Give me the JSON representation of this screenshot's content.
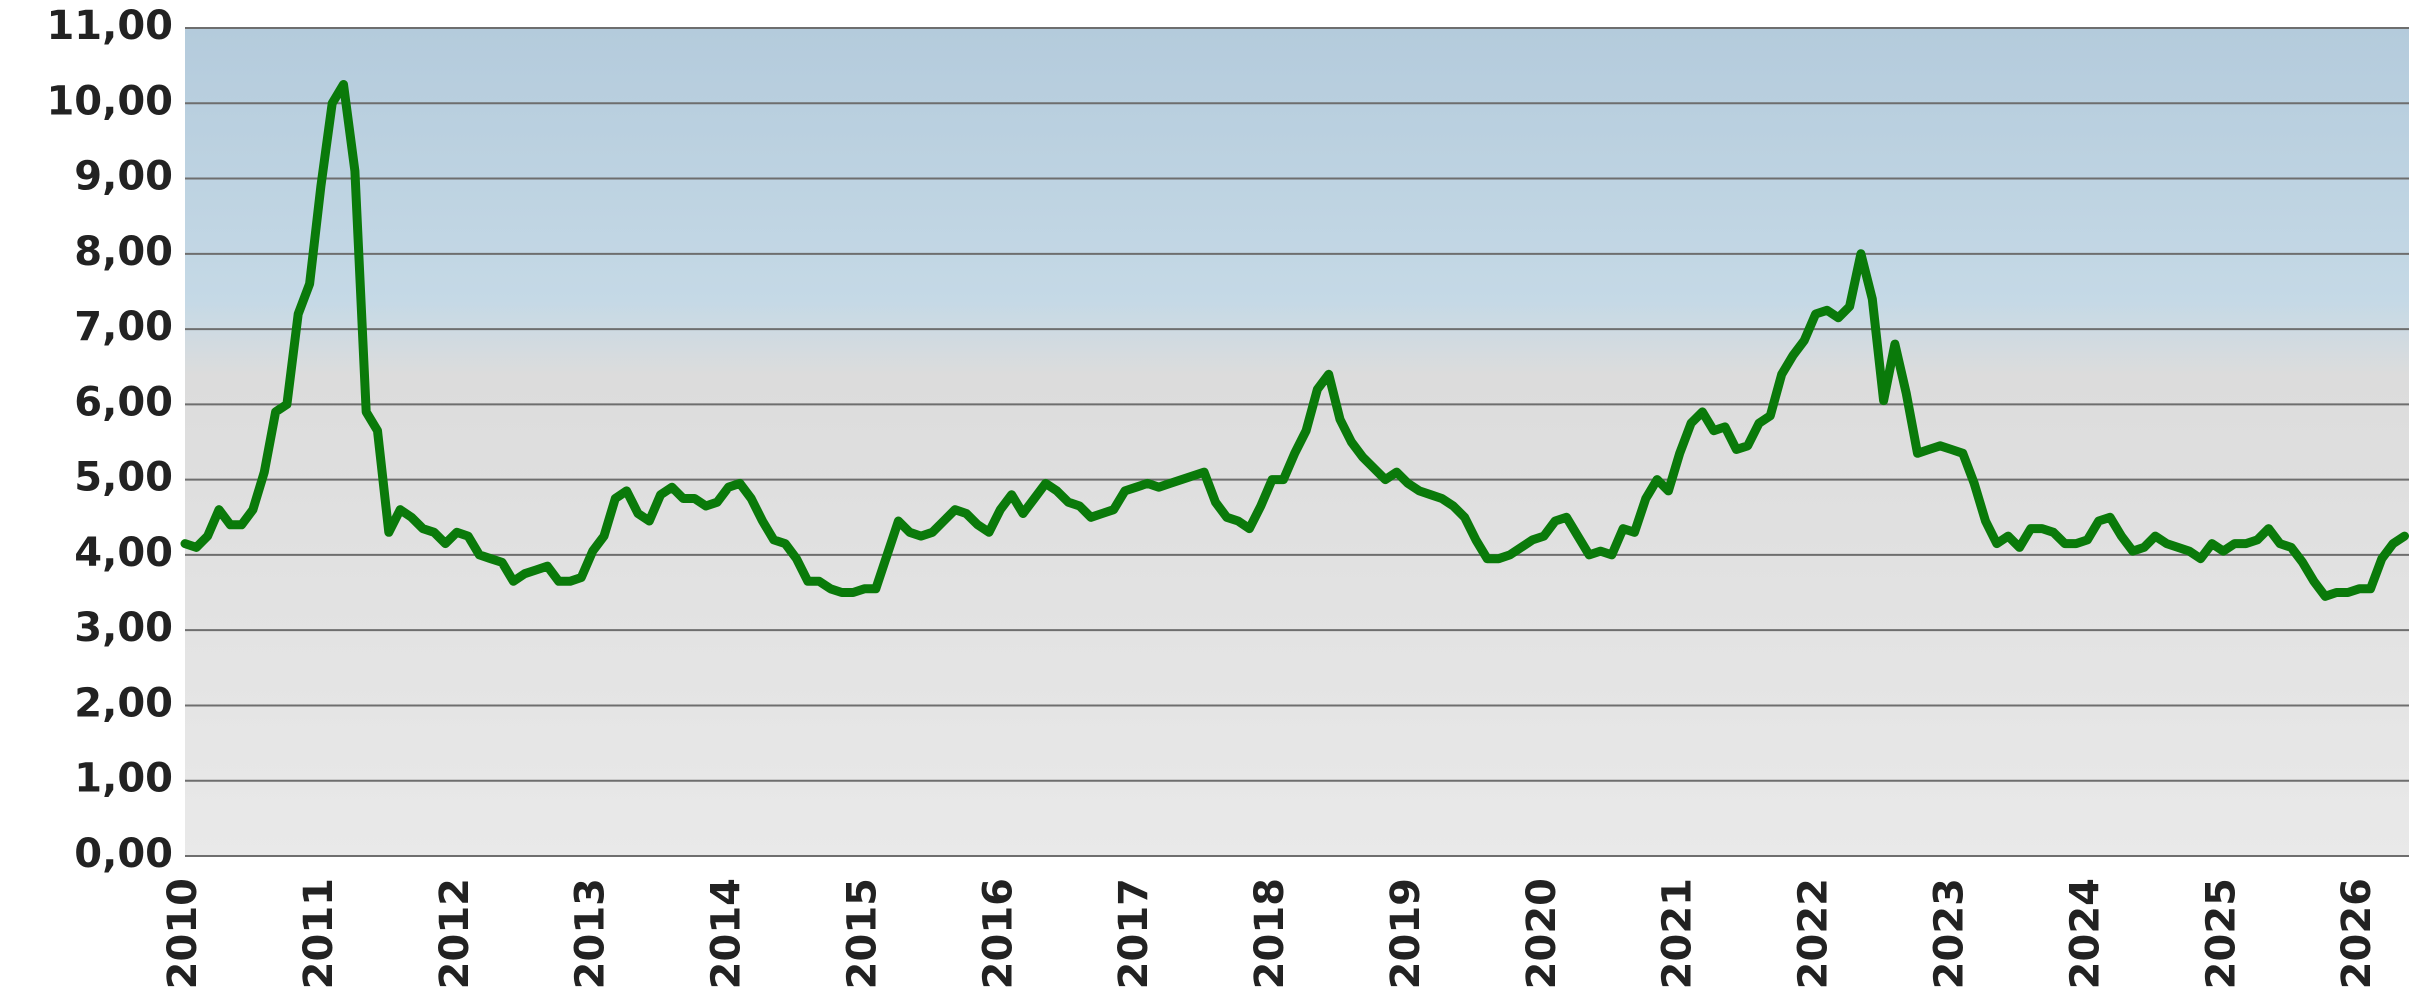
{
  "chart_data": {
    "type": "line",
    "categories": [
      "2010",
      null,
      null,
      null,
      null,
      null,
      null,
      null,
      null,
      null,
      null,
      null,
      "2011",
      null,
      null,
      null,
      null,
      null,
      null,
      null,
      null,
      null,
      null,
      null,
      "2012",
      null,
      null,
      null,
      null,
      null,
      null,
      null,
      null,
      null,
      null,
      null,
      "2013",
      null,
      null,
      null,
      null,
      null,
      null,
      null,
      null,
      null,
      null,
      null,
      "2014",
      null,
      null,
      null,
      null,
      null,
      null,
      null,
      null,
      null,
      null,
      null,
      "2015",
      null,
      null,
      null,
      null,
      null,
      null,
      null,
      null,
      null,
      null,
      null,
      "2016",
      null,
      null,
      null,
      null,
      null,
      null,
      null,
      null,
      null,
      null,
      null,
      "2017",
      null,
      null,
      null,
      null,
      null,
      null,
      null,
      null,
      null,
      null,
      null,
      "2018",
      null,
      null,
      null,
      null,
      null,
      null,
      null,
      null,
      null,
      null,
      null,
      "2019",
      null,
      null,
      null,
      null,
      null,
      null,
      null,
      null,
      null,
      null,
      null,
      "2020",
      null,
      null,
      null,
      null,
      null,
      null,
      null,
      null,
      null,
      null,
      null,
      "2021",
      null,
      null,
      null,
      null,
      null,
      null,
      null,
      null,
      null,
      null,
      null,
      "2022",
      null,
      null,
      null,
      null,
      null,
      null,
      null,
      null,
      null,
      null,
      null,
      "2023",
      null,
      null,
      null,
      null,
      null,
      null,
      null,
      null,
      null,
      null,
      null,
      "2024",
      null,
      null,
      null,
      null,
      null,
      null,
      null,
      null,
      null,
      null,
      null,
      "2025",
      null,
      null,
      null,
      null,
      null,
      null,
      null,
      null,
      null,
      null,
      null,
      "2026",
      null,
      null,
      null,
      null
    ],
    "values": [
      4.15,
      4.1,
      4.25,
      4.6,
      4.4,
      4.4,
      4.6,
      5.1,
      5.9,
      6.0,
      7.2,
      7.6,
      8.9,
      10.0,
      10.25,
      9.1,
      5.9,
      5.65,
      4.3,
      4.6,
      4.5,
      4.35,
      4.3,
      4.15,
      4.3,
      4.25,
      4.0,
      3.95,
      3.9,
      3.65,
      3.75,
      3.8,
      3.85,
      3.65,
      3.65,
      3.7,
      4.05,
      4.25,
      4.75,
      4.85,
      4.55,
      4.45,
      4.8,
      4.9,
      4.75,
      4.75,
      4.65,
      4.7,
      4.9,
      4.95,
      4.75,
      4.45,
      4.2,
      4.15,
      3.95,
      3.65,
      3.65,
      3.55,
      3.5,
      3.5,
      3.55,
      3.55,
      4.0,
      4.45,
      4.3,
      4.25,
      4.3,
      4.45,
      4.6,
      4.55,
      4.4,
      4.3,
      4.6,
      4.8,
      4.55,
      4.75,
      4.95,
      4.85,
      4.7,
      4.65,
      4.5,
      4.55,
      4.6,
      4.85,
      4.9,
      4.95,
      4.9,
      4.95,
      5.0,
      5.05,
      5.1,
      4.7,
      4.5,
      4.45,
      4.35,
      4.65,
      5.0,
      5.0,
      5.35,
      5.65,
      6.2,
      6.4,
      5.8,
      5.5,
      5.3,
      5.15,
      5.0,
      5.1,
      4.95,
      4.85,
      4.8,
      4.75,
      4.65,
      4.5,
      4.2,
      3.95,
      3.95,
      4.0,
      4.1,
      4.2,
      4.25,
      4.45,
      4.5,
      4.25,
      4.0,
      4.05,
      4.0,
      4.35,
      4.3,
      4.75,
      5.0,
      4.85,
      5.35,
      5.75,
      5.9,
      5.65,
      5.7,
      5.4,
      5.45,
      5.75,
      5.85,
      6.4,
      6.65,
      6.85,
      7.2,
      7.25,
      7.15,
      7.3,
      8.0,
      7.4,
      6.05,
      6.8,
      6.15,
      5.35,
      5.4,
      5.45,
      5.4,
      5.35,
      4.95,
      4.45,
      4.15,
      4.25,
      4.1,
      4.35,
      4.35,
      4.3,
      4.15,
      4.15,
      4.2,
      4.45,
      4.5,
      4.25,
      4.05,
      4.1,
      4.25,
      4.15,
      4.1,
      4.05,
      3.95,
      4.15,
      4.05,
      4.15,
      4.15,
      4.2,
      4.35,
      4.15,
      4.1,
      3.9,
      3.65,
      3.45,
      3.5,
      3.5,
      3.55,
      3.55,
      3.95,
      4.15,
      4.25
    ],
    "color": "#0a7a0a",
    "ylim": [
      0,
      11
    ],
    "yticks": [
      {
        "value": 0,
        "label": "0,00"
      },
      {
        "value": 1,
        "label": "1,00"
      },
      {
        "value": 2,
        "label": "2,00"
      },
      {
        "value": 3,
        "label": "3,00"
      },
      {
        "value": 4,
        "label": "4,00"
      },
      {
        "value": 5,
        "label": "5,00"
      },
      {
        "value": 6,
        "label": "6,00"
      },
      {
        "value": 7,
        "label": "7,00"
      },
      {
        "value": 8,
        "label": "8,00"
      },
      {
        "value": 9,
        "label": "9,00"
      },
      {
        "value": 10,
        "label": "10,00"
      },
      {
        "value": 11,
        "label": "11,00"
      }
    ],
    "grid": true
  }
}
